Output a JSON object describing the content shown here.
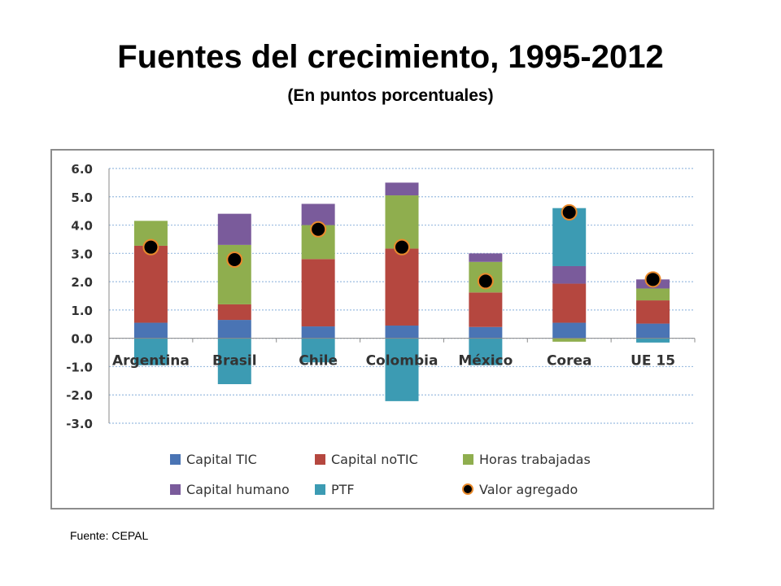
{
  "title": "Fuentes del crecimiento, 1995-2012",
  "subtitle": "(En puntos porcentuales)",
  "source": "Fuente: CEPAL",
  "chart_data": {
    "type": "bar",
    "stacked": true,
    "categories": [
      "Argentina",
      "Brasil",
      "Chile",
      "Colombia",
      "México",
      "Corea",
      "UE 15"
    ],
    "ylim": [
      -3.0,
      6.0
    ],
    "yticks": [
      "6.0",
      "5.0",
      "4.0",
      "3.0",
      "2.0",
      "1.0",
      "0.0",
      "-1.0",
      "-2.0",
      "-3.0"
    ],
    "grid": true,
    "legend_position": "bottom",
    "series": [
      {
        "name": "Capital TIC",
        "color": "#4a74b4",
        "values": [
          0.55,
          0.65,
          0.42,
          0.45,
          0.4,
          0.55,
          0.52
        ]
      },
      {
        "name": "Capital noTIC",
        "color": "#b5473f",
        "values": [
          2.72,
          0.55,
          2.38,
          2.72,
          1.22,
          1.38,
          0.82
        ]
      },
      {
        "name": "Horas trabajadas",
        "color": "#8fae4e",
        "values": [
          0.88,
          2.1,
          1.2,
          1.88,
          1.08,
          -0.12,
          0.42
        ]
      },
      {
        "name": "Capital humano",
        "color": "#7a5b9b",
        "values": [
          0.0,
          1.1,
          0.75,
          0.45,
          0.3,
          0.62,
          0.32
        ]
      },
      {
        "name": "PTF",
        "color": "#3c9bb3",
        "values": [
          -0.95,
          -1.62,
          -0.85,
          -2.22,
          -0.95,
          2.05,
          -0.15
        ]
      }
    ],
    "markers": {
      "name": "Valor agregado",
      "fill": "#000000",
      "stroke": "#e98a2c",
      "values": [
        3.22,
        2.78,
        3.85,
        3.22,
        2.02,
        4.45,
        2.08
      ]
    }
  }
}
